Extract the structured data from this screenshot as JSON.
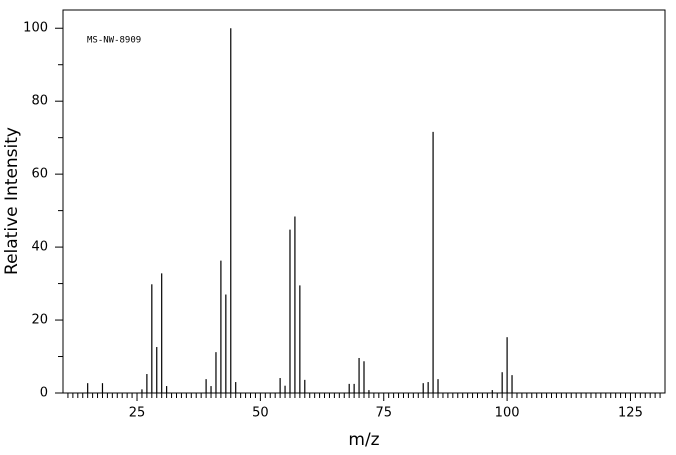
{
  "chart_data": {
    "type": "stem",
    "annotation": "MS-NW-8909",
    "x_label": "m/z",
    "y_label": "Relative Intensity",
    "color": "#000000",
    "x": [
      15,
      18,
      26,
      27,
      28,
      29,
      30,
      31,
      39,
      40,
      41,
      42,
      43,
      44,
      45,
      54,
      55,
      56,
      57,
      58,
      59,
      68,
      69,
      70,
      71,
      72,
      83,
      84,
      85,
      86,
      97,
      99,
      100,
      101
    ],
    "values": [
      2.7,
      2.7,
      1,
      5.2,
      29.8,
      12.6,
      32.8,
      1.9,
      3.8,
      1.9,
      11.2,
      36.3,
      27,
      100,
      3,
      4.1,
      2,
      44.8,
      48.4,
      29.5,
      3.6,
      2.5,
      2.5,
      9.6,
      8.7,
      0.8,
      2.7,
      3,
      71.6,
      3.8,
      0.8,
      5.7,
      15.3,
      4.9
    ],
    "xlim": [
      10,
      132
    ],
    "ylim": [
      0,
      105
    ],
    "xticks": [
      25,
      50,
      75,
      100,
      125
    ],
    "yticks": [
      0,
      20,
      40,
      60,
      80,
      100
    ],
    "xminorticks": [
      11,
      12,
      13,
      14,
      15,
      16,
      17,
      18,
      19,
      20,
      21,
      22,
      23,
      24,
      26,
      27,
      28,
      29,
      30,
      31,
      32,
      33,
      34,
      35,
      36,
      37,
      38,
      39,
      40,
      41,
      42,
      43,
      44,
      45,
      46,
      47,
      48,
      49,
      51,
      52,
      53,
      54,
      55,
      56,
      57,
      58,
      59,
      60,
      61,
      62,
      63,
      64,
      65,
      66,
      67,
      68,
      69,
      70,
      71,
      72,
      73,
      74,
      76,
      77,
      78,
      79,
      80,
      81,
      82,
      83,
      84,
      85,
      86,
      87,
      88,
      89,
      90,
      91,
      92,
      93,
      94,
      95,
      96,
      97,
      98,
      99,
      101,
      102,
      103,
      104,
      105,
      106,
      107,
      108,
      109,
      110,
      111,
      112,
      113,
      114,
      115,
      116,
      117,
      118,
      119,
      120,
      121,
      122,
      123,
      124,
      126,
      127,
      128,
      129,
      130,
      131
    ],
    "yminorticks": [
      10,
      30,
      50,
      70,
      90
    ]
  }
}
